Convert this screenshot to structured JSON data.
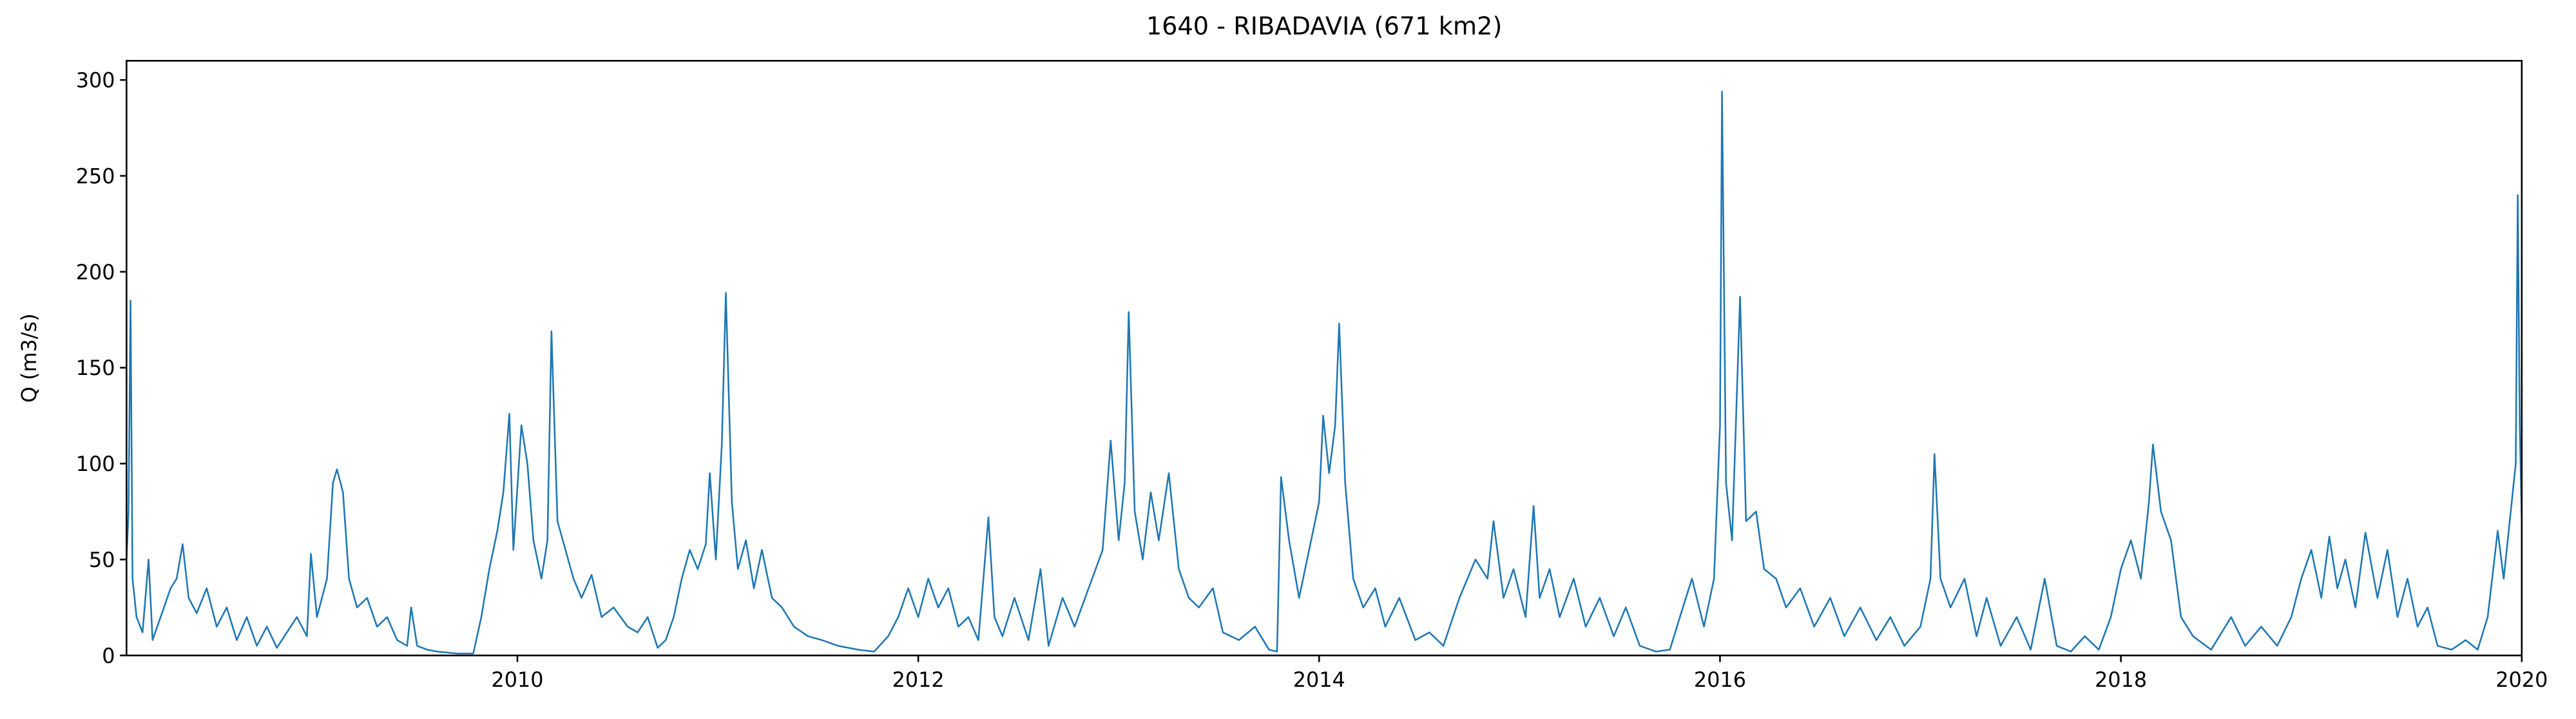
{
  "chart_data": {
    "type": "line",
    "title": "1640 - RIBADAVIA (671 km2)",
    "y_label": "Q (m3/s)",
    "xlim": [
      2008.05,
      2020
    ],
    "xticks": [
      2010,
      2012,
      2014,
      2016,
      2018,
      2020
    ],
    "ylim": [
      0,
      310
    ],
    "yticks": [
      0,
      50,
      100,
      150,
      200,
      250,
      300
    ],
    "series": [
      {
        "color": "#1f77b4",
        "x": [
          2008.05,
          2008.06,
          2008.07,
          2008.08,
          2008.1,
          2008.13,
          2008.16,
          2008.18,
          2008.22,
          2008.27,
          2008.3,
          2008.33,
          2008.36,
          2008.4,
          2008.45,
          2008.5,
          2008.55,
          2008.6,
          2008.65,
          2008.7,
          2008.75,
          2008.8,
          2008.85,
          2008.9,
          2008.95,
          2008.97,
          2009.0,
          2009.05,
          2009.08,
          2009.1,
          2009.13,
          2009.16,
          2009.2,
          2009.25,
          2009.3,
          2009.35,
          2009.4,
          2009.45,
          2009.47,
          2009.5,
          2009.55,
          2009.6,
          2009.7,
          2009.78,
          2009.82,
          2009.86,
          2009.9,
          2009.93,
          2009.96,
          2009.98,
          2010.02,
          2010.05,
          2010.08,
          2010.12,
          2010.15,
          2010.17,
          2010.2,
          2010.24,
          2010.28,
          2010.32,
          2010.37,
          2010.42,
          2010.48,
          2010.55,
          2010.6,
          2010.65,
          2010.7,
          2010.74,
          2010.78,
          2010.82,
          2010.86,
          2010.9,
          2010.94,
          2010.96,
          2010.99,
          2011.02,
          2011.04,
          2011.07,
          2011.1,
          2011.14,
          2011.18,
          2011.22,
          2011.27,
          2011.32,
          2011.38,
          2011.45,
          2011.52,
          2011.6,
          2011.7,
          2011.78,
          2011.85,
          2011.9,
          2011.95,
          2012.0,
          2012.05,
          2012.1,
          2012.15,
          2012.2,
          2012.25,
          2012.3,
          2012.35,
          2012.38,
          2012.42,
          2012.48,
          2012.55,
          2012.61,
          2012.65,
          2012.72,
          2012.78,
          2012.85,
          2012.92,
          2012.96,
          2013.0,
          2013.03,
          2013.05,
          2013.08,
          2013.12,
          2013.16,
          2013.2,
          2013.25,
          2013.3,
          2013.35,
          2013.4,
          2013.47,
          2013.52,
          2013.6,
          2013.68,
          2013.75,
          2013.79,
          2013.81,
          2013.85,
          2013.9,
          2013.95,
          2014.0,
          2014.02,
          2014.05,
          2014.08,
          2014.1,
          2014.13,
          2014.17,
          2014.22,
          2014.28,
          2014.33,
          2014.4,
          2014.48,
          2014.55,
          2014.62,
          2014.7,
          2014.78,
          2014.84,
          2014.87,
          2014.92,
          2014.97,
          2015.03,
          2015.07,
          2015.1,
          2015.15,
          2015.2,
          2015.27,
          2015.33,
          2015.4,
          2015.47,
          2015.53,
          2015.6,
          2015.68,
          2015.75,
          2015.8,
          2015.86,
          2015.92,
          2015.97,
          2016.0,
          2016.01,
          2016.03,
          2016.06,
          2016.1,
          2016.13,
          2016.18,
          2016.22,
          2016.28,
          2016.33,
          2016.4,
          2016.47,
          2016.55,
          2016.62,
          2016.7,
          2016.78,
          2016.85,
          2016.92,
          2017.0,
          2017.05,
          2017.07,
          2017.1,
          2017.15,
          2017.22,
          2017.28,
          2017.33,
          2017.4,
          2017.48,
          2017.55,
          2017.62,
          2017.68,
          2017.75,
          2017.82,
          2017.89,
          2017.95,
          2018.0,
          2018.05,
          2018.1,
          2018.14,
          2018.16,
          2018.2,
          2018.25,
          2018.3,
          2018.36,
          2018.45,
          2018.55,
          2018.62,
          2018.7,
          2018.78,
          2018.85,
          2018.9,
          2018.95,
          2019.0,
          2019.04,
          2019.08,
          2019.12,
          2019.17,
          2019.22,
          2019.28,
          2019.33,
          2019.38,
          2019.43,
          2019.48,
          2019.53,
          2019.58,
          2019.65,
          2019.72,
          2019.78,
          2019.83,
          2019.88,
          2019.91,
          2019.94,
          2019.97,
          2019.98,
          2019.99,
          2020.0
        ],
        "values": [
          50,
          75,
          185,
          40,
          20,
          12,
          50,
          8,
          20,
          35,
          40,
          58,
          30,
          22,
          35,
          15,
          25,
          8,
          20,
          5,
          15,
          4,
          12,
          20,
          10,
          53,
          20,
          40,
          90,
          97,
          85,
          40,
          25,
          30,
          15,
          20,
          8,
          5,
          25,
          5,
          3,
          2,
          1,
          1,
          20,
          45,
          65,
          85,
          126,
          55,
          120,
          100,
          60,
          40,
          60,
          169,
          70,
          55,
          40,
          30,
          42,
          20,
          25,
          15,
          12,
          20,
          4,
          8,
          20,
          40,
          55,
          45,
          58,
          95,
          50,
          110,
          189,
          80,
          45,
          60,
          35,
          55,
          30,
          25,
          15,
          10,
          8,
          5,
          3,
          2,
          10,
          20,
          35,
          20,
          40,
          25,
          35,
          15,
          20,
          8,
          72,
          20,
          10,
          30,
          8,
          45,
          5,
          30,
          15,
          35,
          55,
          112,
          60,
          90,
          179,
          75,
          50,
          85,
          60,
          95,
          45,
          30,
          25,
          35,
          12,
          8,
          15,
          3,
          2,
          93,
          60,
          30,
          55,
          80,
          125,
          95,
          120,
          173,
          90,
          40,
          25,
          35,
          15,
          30,
          8,
          12,
          5,
          30,
          50,
          40,
          70,
          30,
          45,
          20,
          78,
          30,
          45,
          20,
          40,
          15,
          30,
          10,
          25,
          5,
          2,
          3,
          20,
          40,
          15,
          40,
          120,
          294,
          90,
          60,
          187,
          70,
          75,
          45,
          40,
          25,
          35,
          15,
          30,
          10,
          25,
          8,
          20,
          5,
          15,
          40,
          105,
          40,
          25,
          40,
          10,
          30,
          5,
          20,
          3,
          40,
          5,
          2,
          10,
          3,
          20,
          45,
          60,
          40,
          80,
          110,
          75,
          60,
          20,
          10,
          3,
          20,
          5,
          15,
          5,
          20,
          40,
          55,
          30,
          62,
          35,
          50,
          25,
          64,
          30,
          55,
          20,
          40,
          15,
          25,
          5,
          3,
          8,
          3,
          20,
          65,
          40,
          70,
          100,
          240,
          120,
          70
        ]
      }
    ]
  }
}
